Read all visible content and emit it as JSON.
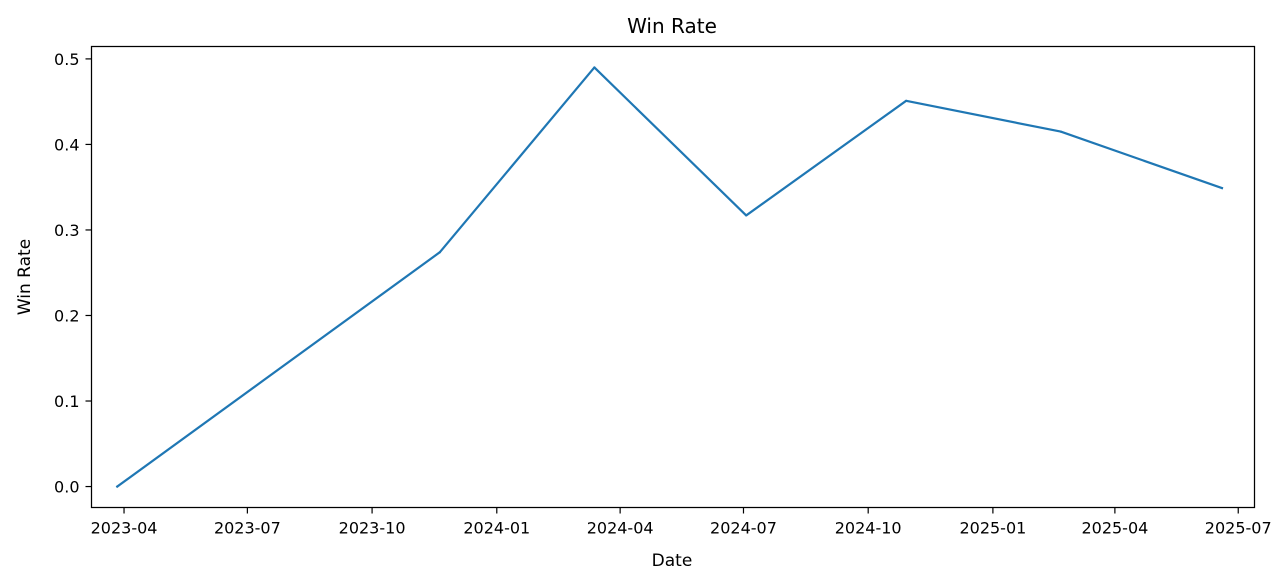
{
  "chart_data": {
    "type": "line",
    "title": "Win Rate",
    "xlabel": "Date",
    "ylabel": "Win Rate",
    "x_scale": "date",
    "xlim": [
      "2023-03-08",
      "2025-07-13"
    ],
    "ylim": [
      -0.0245,
      0.5145
    ],
    "x_ticks": [
      {
        "date": "2023-04-01",
        "label": "2023-04"
      },
      {
        "date": "2023-07-01",
        "label": "2023-07"
      },
      {
        "date": "2023-10-01",
        "label": "2023-10"
      },
      {
        "date": "2024-01-01",
        "label": "2024-01"
      },
      {
        "date": "2024-04-01",
        "label": "2024-04"
      },
      {
        "date": "2024-07-01",
        "label": "2024-07"
      },
      {
        "date": "2024-10-01",
        "label": "2024-10"
      },
      {
        "date": "2025-01-01",
        "label": "2025-01"
      },
      {
        "date": "2025-04-01",
        "label": "2025-04"
      },
      {
        "date": "2025-07-01",
        "label": "2025-07"
      }
    ],
    "y_ticks": [
      {
        "value": 0.0,
        "label": "0.0"
      },
      {
        "value": 0.1,
        "label": "0.1"
      },
      {
        "value": 0.2,
        "label": "0.2"
      },
      {
        "value": 0.3,
        "label": "0.3"
      },
      {
        "value": 0.4,
        "label": "0.4"
      },
      {
        "value": 0.5,
        "label": "0.5"
      }
    ],
    "grid": false,
    "legend": "none",
    "series": [
      {
        "color": "#1f77b4",
        "points": [
          {
            "x": "2023-03-27",
            "y": 0.0
          },
          {
            "x": "2023-11-20",
            "y": 0.274
          },
          {
            "x": "2024-03-13",
            "y": 0.49
          },
          {
            "x": "2024-07-03",
            "y": 0.317
          },
          {
            "x": "2024-10-29",
            "y": 0.451
          },
          {
            "x": "2025-02-20",
            "y": 0.415
          },
          {
            "x": "2025-06-19",
            "y": 0.349
          }
        ]
      }
    ]
  }
}
